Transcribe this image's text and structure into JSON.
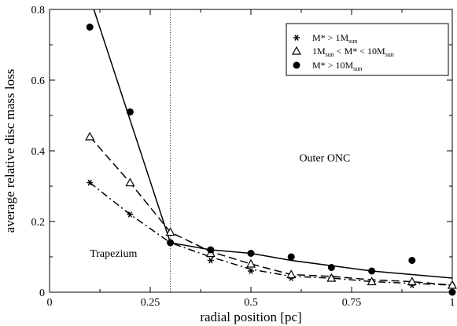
{
  "chart_data": {
    "type": "line",
    "xlabel": "radial position [pc]",
    "ylabel": "average relative disc mass loss",
    "xlim": [
      0,
      1
    ],
    "ylim": [
      0,
      0.8
    ],
    "x_ticks": [
      0,
      0.25,
      0.5,
      0.75,
      1
    ],
    "x_tick_labels": [
      "0",
      "0.25",
      "0.5",
      "0.75",
      "1"
    ],
    "y_ticks": [
      0,
      0.2,
      0.4,
      0.6,
      0.8
    ],
    "y_tick_labels": [
      "0",
      "0.2",
      "0.4",
      "0.6",
      "0.8"
    ],
    "vertical_reference_line": {
      "x": 0.3,
      "style": "dotted"
    },
    "annotations": [
      {
        "text": "Trapezium",
        "x": 0.1,
        "y": 0.1
      },
      {
        "text": "Outer ONC",
        "x": 0.62,
        "y": 0.37
      }
    ],
    "legend_position": "top-right",
    "series": [
      {
        "legend_main": "M* > 1M",
        "legend_sub": "sun",
        "marker": "asterisk",
        "line_style": "dash-dot",
        "x": [
          0.1,
          0.2,
          0.3,
          0.4,
          0.5,
          0.6,
          0.7,
          0.8,
          0.9,
          1.0
        ],
        "points": [
          0.31,
          0.22,
          0.14,
          0.09,
          0.06,
          0.04,
          0.04,
          0.03,
          0.02,
          0.02
        ],
        "curve": [
          0.31,
          0.22,
          0.14,
          0.1,
          0.065,
          0.045,
          0.04,
          0.03,
          0.025,
          0.02
        ]
      },
      {
        "legend_parts": [
          [
            "1M",
            ""
          ],
          [
            "sun",
            "sub"
          ],
          [
            " < M* < 10M",
            ""
          ],
          [
            "sun",
            "sub"
          ]
        ],
        "marker": "triangle",
        "line_style": "dashed",
        "x": [
          0.1,
          0.2,
          0.3,
          0.4,
          0.5,
          0.6,
          0.7,
          0.8,
          0.9,
          1.0
        ],
        "points": [
          0.44,
          0.31,
          0.17,
          0.11,
          0.08,
          0.05,
          0.04,
          0.03,
          0.03,
          0.02
        ],
        "curve": [
          0.44,
          0.31,
          0.17,
          0.115,
          0.08,
          0.05,
          0.045,
          0.035,
          0.03,
          0.02
        ]
      },
      {
        "legend_main": "M* > 10M",
        "legend_sub": "sun",
        "marker": "circle",
        "line_style": "solid",
        "x": [
          0.1,
          0.2,
          0.3,
          0.4,
          0.5,
          0.6,
          0.7,
          0.8,
          0.9,
          1.0
        ],
        "points": [
          0.75,
          0.51,
          0.14,
          0.12,
          0.11,
          0.1,
          0.07,
          0.06,
          0.09,
          0.0
        ],
        "curve_x": [
          0.11,
          0.3,
          0.4,
          0.5,
          0.6,
          0.7,
          0.8,
          0.9,
          1.0
        ],
        "curve": [
          0.8,
          0.14,
          0.12,
          0.11,
          0.09,
          0.075,
          0.06,
          0.05,
          0.04
        ]
      }
    ]
  }
}
